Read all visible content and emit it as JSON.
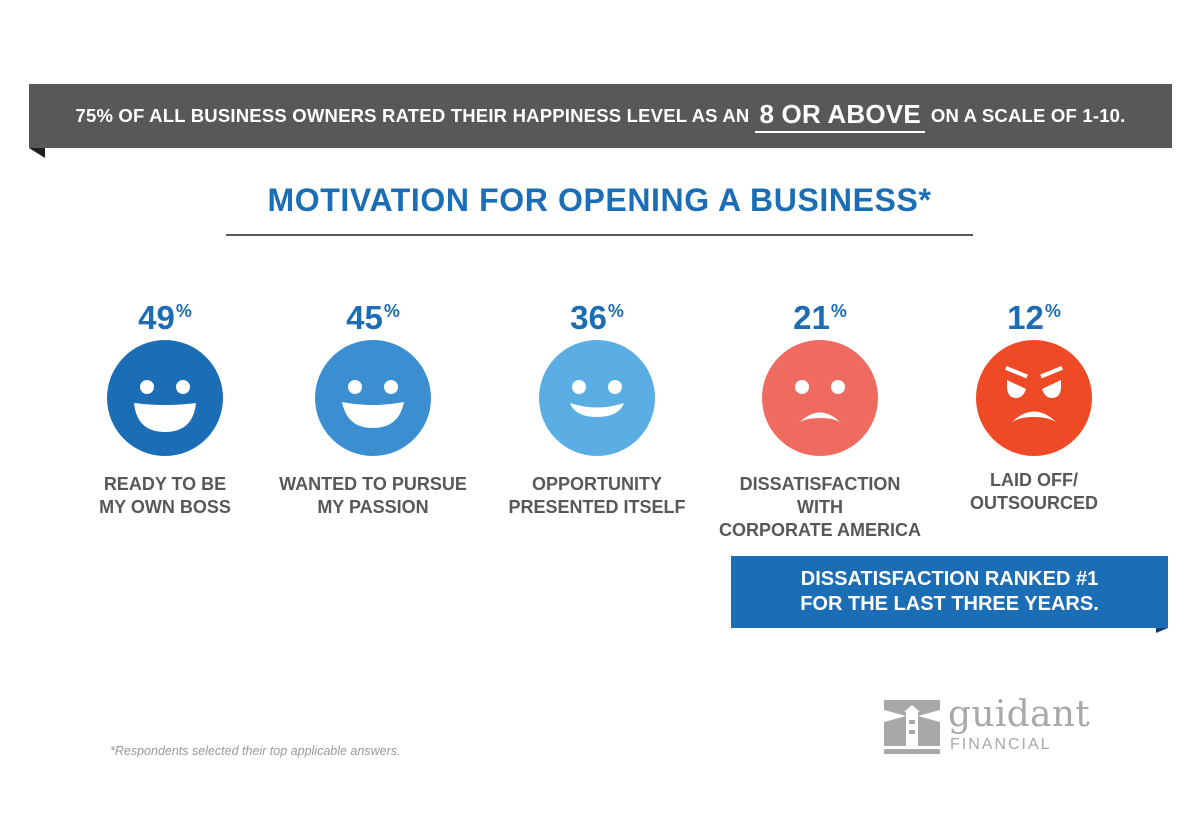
{
  "banner": {
    "text_before": "75% OF ALL BUSINESS OWNERS RATED THEIR HAPPINESS LEVEL AS AN",
    "highlight": "8 OR ABOVE",
    "text_after": "ON A SCALE OF 1-10."
  },
  "chart_data": {
    "type": "bar",
    "title": "MOTIVATION FOR OPENING A BUSINESS*",
    "unit": "%",
    "categories": [
      "READY TO BE\nMY OWN BOSS",
      "WANTED TO PURSUE\nMY PASSION",
      "OPPORTUNITY\nPRESENTED ITSELF",
      "DISSATISFACTION WITH\nCORPORATE AMERICA",
      "LAID OFF/\nOUTSOURCED"
    ],
    "values": [
      49,
      45,
      36,
      21,
      12
    ],
    "faces": [
      {
        "mood": "very-happy",
        "color": "#1b6db5",
        "icon": "big-smile-face-icon"
      },
      {
        "mood": "happy",
        "color": "#3b8fd0",
        "icon": "smile-face-icon"
      },
      {
        "mood": "content",
        "color": "#5aaee3",
        "icon": "slight-smile-face-icon"
      },
      {
        "mood": "sad",
        "color": "#ef6b5f",
        "icon": "frown-face-icon"
      },
      {
        "mood": "angry",
        "color": "#ee4a26",
        "icon": "angry-face-icon"
      }
    ]
  },
  "callout": {
    "line1": "DISSATISFACTION RANKED #1",
    "line2": "FOR THE LAST THREE YEARS."
  },
  "footnote": "*Respondents selected their top applicable answers.",
  "logo": {
    "name": "guidant",
    "sub": "FINANCIAL",
    "icon": "lighthouse-logo-icon"
  },
  "colors": {
    "primary_blue": "#1b6db5",
    "dark_gray": "#58585a",
    "logo_gray": "#a7a8aa"
  }
}
